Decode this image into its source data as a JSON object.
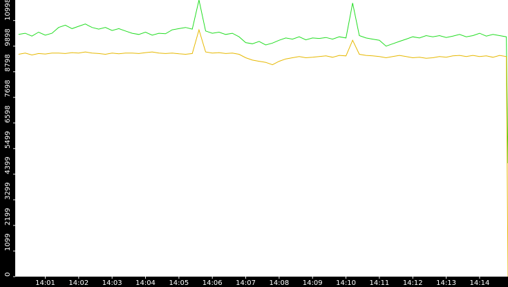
{
  "chart_data": {
    "type": "line",
    "x": [
      0.2,
      0.4,
      0.6,
      0.8,
      1.0,
      1.2,
      1.4,
      1.6,
      1.8,
      2.0,
      2.2,
      2.4,
      2.6,
      2.8,
      3.0,
      3.2,
      3.4,
      3.6,
      3.8,
      4.0,
      4.2,
      4.4,
      4.6,
      4.8,
      5.0,
      5.2,
      5.4,
      5.6,
      5.8,
      6.0,
      6.2,
      6.4,
      6.6,
      6.8,
      7.0,
      7.2,
      7.4,
      7.6,
      7.8,
      8.0,
      8.2,
      8.4,
      8.6,
      8.8,
      9.0,
      9.2,
      9.4,
      9.6,
      9.8,
      10.0,
      10.2,
      10.4,
      10.6,
      10.8,
      11.0,
      11.2,
      11.4,
      11.6,
      11.8,
      12.0,
      12.2,
      12.4,
      12.6,
      12.8,
      13.0,
      13.2,
      13.4,
      13.6,
      13.8,
      14.0,
      14.2,
      14.4,
      14.6,
      14.8,
      14.85
    ],
    "series": [
      {
        "color": "#22dd22",
        "values": [
          10400,
          10450,
          10330,
          10500,
          10370,
          10450,
          10700,
          10800,
          10650,
          10750,
          10850,
          10700,
          10630,
          10700,
          10570,
          10650,
          10550,
          10450,
          10400,
          10500,
          10370,
          10450,
          10430,
          10600,
          10650,
          10700,
          10630,
          11880,
          10550,
          10450,
          10500,
          10400,
          10450,
          10300,
          10050,
          10000,
          10100,
          9950,
          10030,
          10150,
          10250,
          10200,
          10300,
          10170,
          10250,
          10230,
          10270,
          10200,
          10300,
          10250,
          11750,
          10350,
          10250,
          10200,
          10150,
          9900,
          10000,
          10100,
          10200,
          10300,
          10250,
          10350,
          10300,
          10350,
          10270,
          10330,
          10400,
          10300,
          10350,
          10450,
          10330,
          10400,
          10350,
          10300,
          4870
        ]
      },
      {
        "color": "#e6b800",
        "values": [
          9550,
          9600,
          9520,
          9580,
          9560,
          9600,
          9600,
          9580,
          9620,
          9600,
          9650,
          9600,
          9580,
          9550,
          9600,
          9570,
          9600,
          9600,
          9580,
          9620,
          9650,
          9600,
          9580,
          9600,
          9570,
          9550,
          9580,
          10600,
          9650,
          9600,
          9620,
          9580,
          9600,
          9550,
          9400,
          9300,
          9250,
          9200,
          9100,
          9250,
          9350,
          9400,
          9450,
          9400,
          9420,
          9450,
          9480,
          9420,
          9500,
          9480,
          10150,
          9550,
          9500,
          9480,
          9450,
          9400,
          9450,
          9500,
          9450,
          9400,
          9420,
          9380,
          9400,
          9450,
          9420,
          9480,
          9500,
          9450,
          9500,
          9450,
          9480,
          9420,
          9500,
          9450,
          0
        ]
      }
    ],
    "xlim": [
      0.1,
      14.85
    ],
    "xticks": [
      {
        "value": 1,
        "label": "14:01"
      },
      {
        "value": 2,
        "label": "14:02"
      },
      {
        "value": 3,
        "label": "14:03"
      },
      {
        "value": 4,
        "label": "14:04"
      },
      {
        "value": 5,
        "label": "14:05"
      },
      {
        "value": 6,
        "label": "14:06"
      },
      {
        "value": 7,
        "label": "14:07"
      },
      {
        "value": 8,
        "label": "14:08"
      },
      {
        "value": 9,
        "label": "14:09"
      },
      {
        "value": 10,
        "label": "14:10"
      },
      {
        "value": 11,
        "label": "14:11"
      },
      {
        "value": 12,
        "label": "14:12"
      },
      {
        "value": 13,
        "label": "14:13"
      },
      {
        "value": 14,
        "label": "14:14"
      }
    ],
    "ylim": [
      0,
      11880
    ],
    "yticks": [
      0,
      1099,
      2199,
      3299,
      4399,
      5499,
      6598,
      7698,
      8798,
      9898,
      10998
    ]
  }
}
